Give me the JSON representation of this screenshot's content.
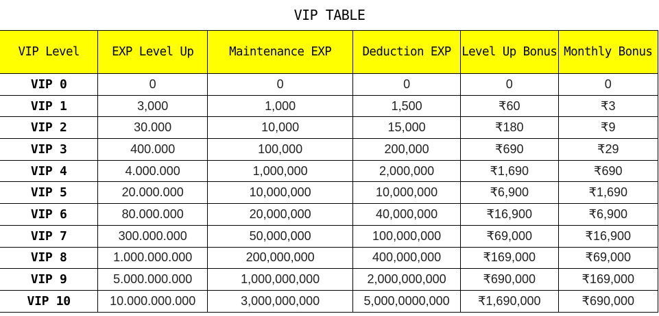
{
  "title": "VIP TABLE",
  "colors": {
    "header_bg": "#ffff00",
    "border": "#000000",
    "text": "#222222"
  },
  "table": {
    "headers": [
      "VIP Level",
      "EXP Level Up",
      "Maintenance EXP",
      "Deduction EXP",
      "Level Up Bonus",
      "Monthly Bonus"
    ],
    "rows": [
      {
        "level": "VIP 0",
        "exp_level_up": "0",
        "maintenance_exp": "0",
        "deduction_exp": "0",
        "level_up_bonus": "0",
        "monthly_bonus": "0"
      },
      {
        "level": "VIP 1",
        "exp_level_up": "3,000",
        "maintenance_exp": "1,000",
        "deduction_exp": "1,500",
        "level_up_bonus": "₹60",
        "monthly_bonus": "₹3"
      },
      {
        "level": "VIP 2",
        "exp_level_up": "30.000",
        "maintenance_exp": "10,000",
        "deduction_exp": "15,000",
        "level_up_bonus": "₹180",
        "monthly_bonus": "₹9"
      },
      {
        "level": "VIP 3",
        "exp_level_up": "400.000",
        "maintenance_exp": "100,000",
        "deduction_exp": "200,000",
        "level_up_bonus": "₹690",
        "monthly_bonus": "₹29"
      },
      {
        "level": "VIP 4",
        "exp_level_up": "4.000.000",
        "maintenance_exp": "1,000,000",
        "deduction_exp": "2,000,000",
        "level_up_bonus": "₹1,690",
        "monthly_bonus": "₹690"
      },
      {
        "level": "VIP 5",
        "exp_level_up": "20.000.000",
        "maintenance_exp": "10,000,000",
        "deduction_exp": "10,000,000",
        "level_up_bonus": "₹6,900",
        "monthly_bonus": "₹1,690"
      },
      {
        "level": "VIP 6",
        "exp_level_up": "80.000.000",
        "maintenance_exp": "20,000,000",
        "deduction_exp": "40,000,000",
        "level_up_bonus": "₹16,900",
        "monthly_bonus": "₹6,900"
      },
      {
        "level": "VIP 7",
        "exp_level_up": "300.000.000",
        "maintenance_exp": "50,000,000",
        "deduction_exp": "100,000,000",
        "level_up_bonus": "₹69,000",
        "monthly_bonus": "₹16,900"
      },
      {
        "level": "VIP 8",
        "exp_level_up": "1.000.000.000",
        "maintenance_exp": "200,000,000",
        "deduction_exp": "400,000,000",
        "level_up_bonus": "₹169,000",
        "monthly_bonus": "₹69,000"
      },
      {
        "level": "VIP 9",
        "exp_level_up": "5.000.000.000",
        "maintenance_exp": "1,000,000,000",
        "deduction_exp": "2,000,000,000",
        "level_up_bonus": "₹690,000",
        "monthly_bonus": "₹169,000"
      },
      {
        "level": "VIP 10",
        "exp_level_up": "10.000.000.000",
        "maintenance_exp": "3,000,000,000",
        "deduction_exp": "5,000,0000,000",
        "level_up_bonus": "₹1,690,000",
        "monthly_bonus": "₹690,000"
      }
    ]
  }
}
